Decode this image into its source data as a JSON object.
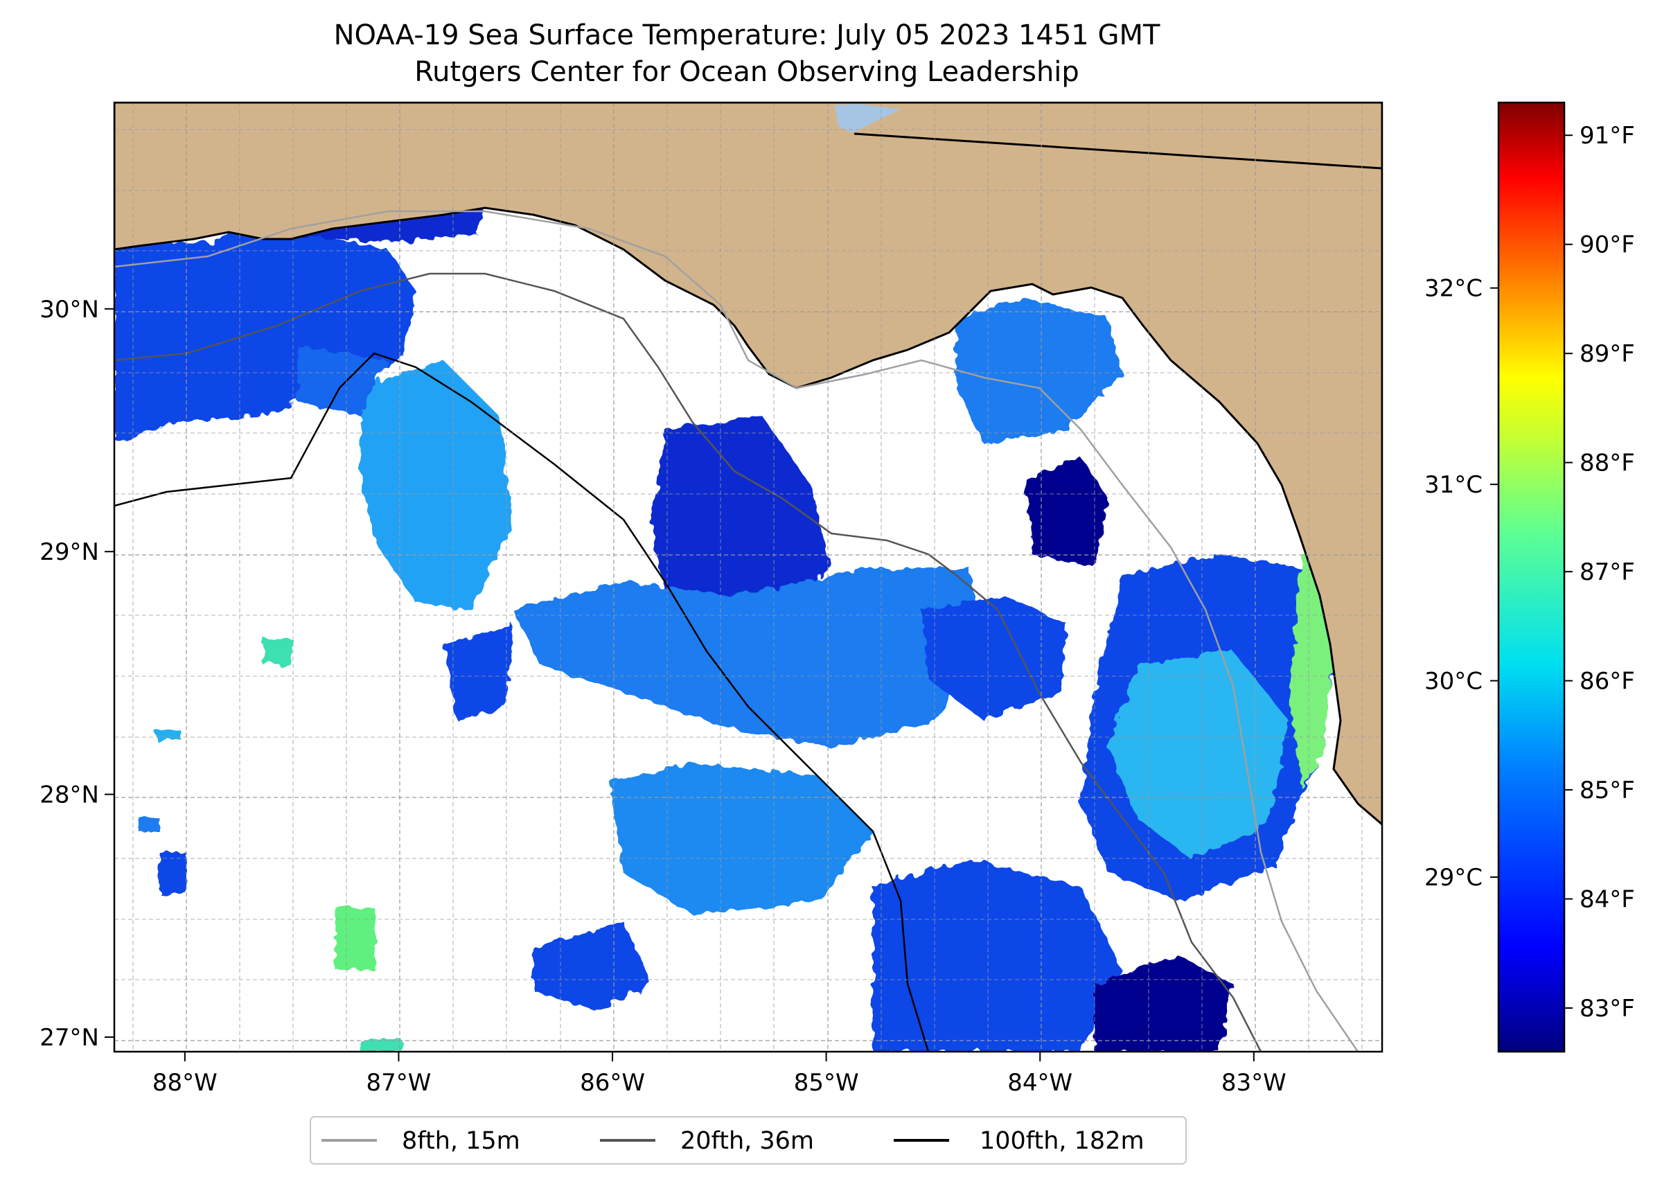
{
  "title": {
    "line1": "NOAA-19 Sea Surface Temperature: July 05 2023 1451 GMT",
    "line2": "Rutgers Center for Ocean Observing Leadership"
  },
  "chart_data": {
    "type": "heatmap",
    "subject": "sea surface temperature",
    "lon_range": [
      -88.33,
      -82.4
    ],
    "lat_range": [
      26.94,
      30.85
    ],
    "x_ticks": [
      {
        "value": -88,
        "label": "88°W"
      },
      {
        "value": -87,
        "label": "87°W"
      },
      {
        "value": -86,
        "label": "86°W"
      },
      {
        "value": -85,
        "label": "85°W"
      },
      {
        "value": -84,
        "label": "84°W"
      },
      {
        "value": -83,
        "label": "83°W"
      }
    ],
    "y_ticks": [
      {
        "value": 27,
        "label": "27°N"
      },
      {
        "value": 28,
        "label": "28°N"
      },
      {
        "value": 29,
        "label": "29°N"
      },
      {
        "value": 30,
        "label": "30°N"
      }
    ],
    "grid": true,
    "colorbar": {
      "colormap": "jet",
      "range_f": [
        82.6,
        91.3
      ],
      "fahrenheit_ticks": [
        {
          "value": 83,
          "label": "83°F"
        },
        {
          "value": 84,
          "label": "84°F"
        },
        {
          "value": 85,
          "label": "85°F"
        },
        {
          "value": 86,
          "label": "86°F"
        },
        {
          "value": 87,
          "label": "87°F"
        },
        {
          "value": 88,
          "label": "88°F"
        },
        {
          "value": 89,
          "label": "89°F"
        },
        {
          "value": 90,
          "label": "90°F"
        },
        {
          "value": 91,
          "label": "91°F"
        }
      ],
      "celsius_ticks": [
        {
          "value": 29,
          "label": "29°C"
        },
        {
          "value": 30,
          "label": "30°C"
        },
        {
          "value": 31,
          "label": "31°C"
        },
        {
          "value": 32,
          "label": "32°C"
        }
      ]
    },
    "legend": {
      "placement": "bottom-center",
      "entries": [
        {
          "label": "8fth, 15m",
          "color": "#a0a0a0"
        },
        {
          "label": "20fth, 36m",
          "color": "#555555"
        },
        {
          "label": "100fth, 182m",
          "color": "#000000"
        }
      ]
    },
    "colors": {
      "land": "#d2b48c",
      "no_data": "#ffffff",
      "lake": "#a6c4e4"
    }
  }
}
